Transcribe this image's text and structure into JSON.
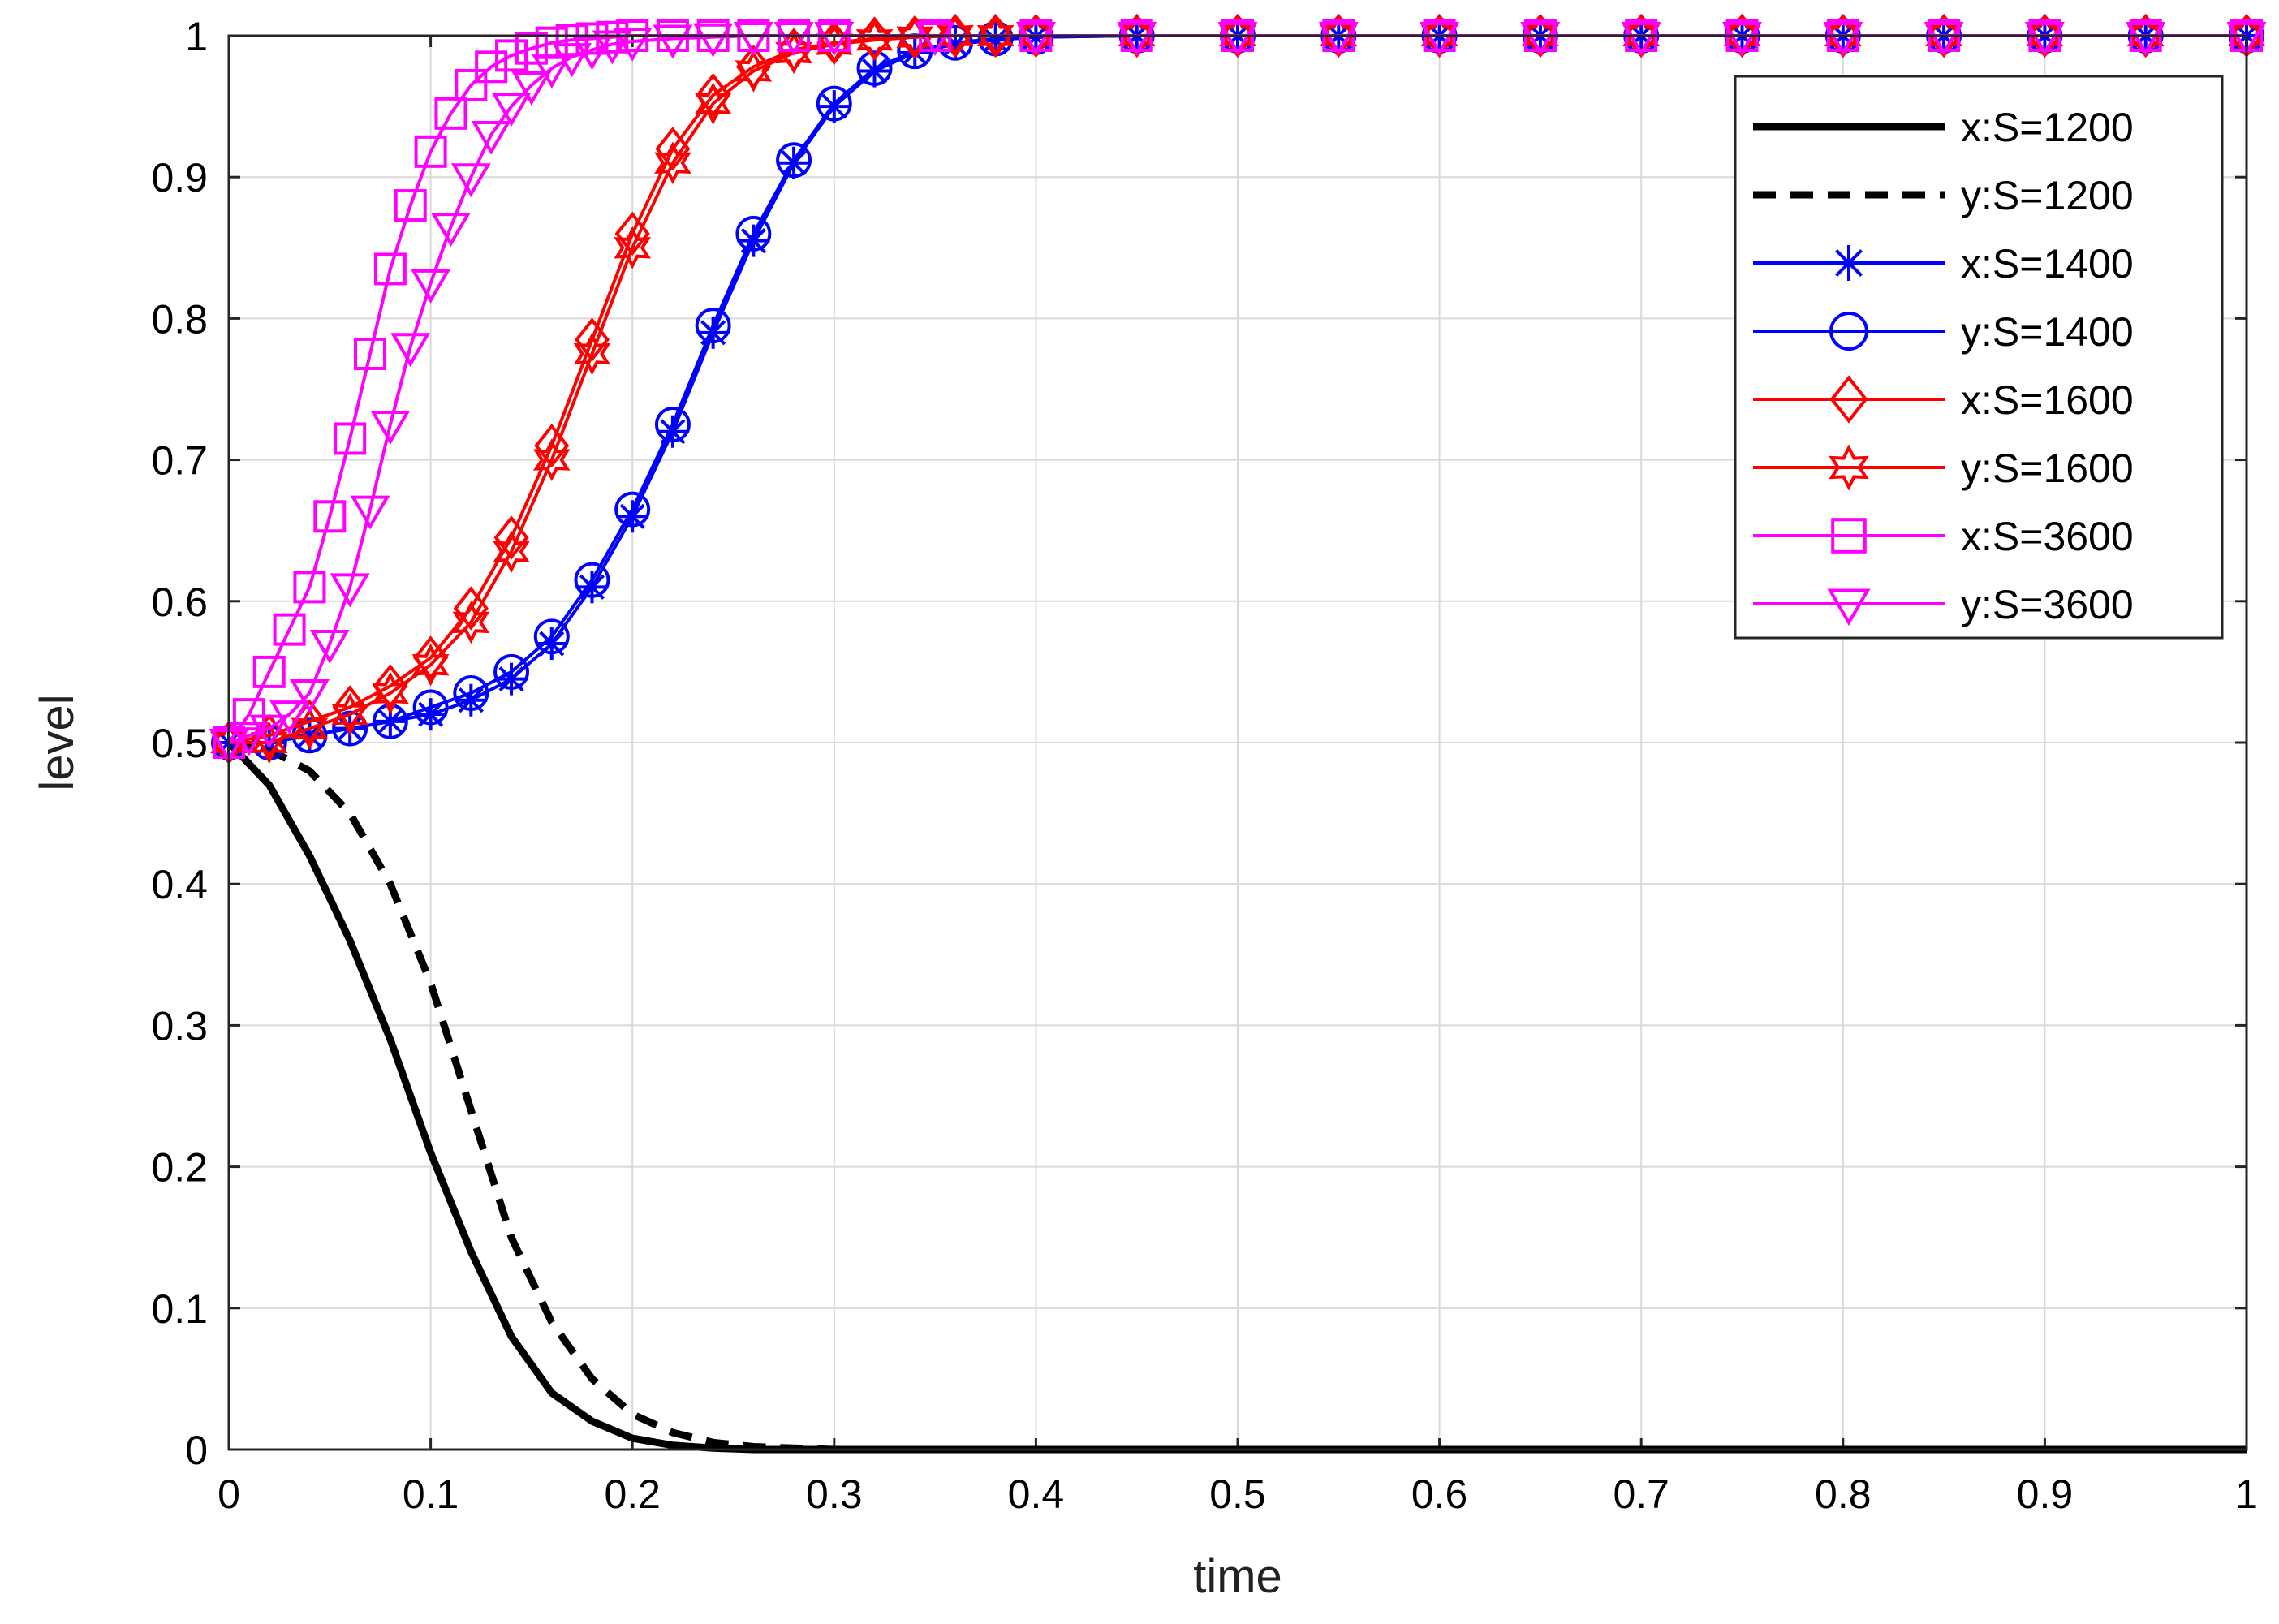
{
  "chart_data": {
    "type": "line",
    "title": "",
    "xlabel": "time",
    "ylabel": "level",
    "xlim": [
      0,
      1
    ],
    "ylim": [
      0,
      1
    ],
    "xticks": [
      "0",
      "0.1",
      "0.2",
      "0.3",
      "0.4",
      "0.5",
      "0.6",
      "0.7",
      "0.8",
      "0.9",
      "1"
    ],
    "yticks": [
      "0",
      "0.1",
      "0.2",
      "0.3",
      "0.4",
      "0.5",
      "0.6",
      "0.7",
      "0.8",
      "0.9",
      "1"
    ],
    "grid": true,
    "legend_position": "top-right",
    "series": [
      {
        "name": "x:S=1200",
        "color": "#000000",
        "dash": "solid",
        "marker": "none",
        "x": [
          0,
          0.02,
          0.04,
          0.06,
          0.08,
          0.1,
          0.12,
          0.14,
          0.16,
          0.18,
          0.2,
          0.22,
          0.24,
          0.26,
          0.28,
          0.3,
          0.35,
          0.4,
          0.5,
          0.6,
          0.7,
          0.8,
          0.9,
          1.0
        ],
        "y": [
          0.5,
          0.47,
          0.42,
          0.36,
          0.29,
          0.21,
          0.14,
          0.08,
          0.04,
          0.02,
          0.008,
          0.003,
          0.001,
          0,
          0,
          0,
          0,
          0,
          0,
          0,
          0,
          0,
          0,
          0
        ]
      },
      {
        "name": "y:S=1200",
        "color": "#000000",
        "dash": "dashed",
        "marker": "none",
        "x": [
          0,
          0.02,
          0.04,
          0.06,
          0.08,
          0.1,
          0.12,
          0.14,
          0.16,
          0.18,
          0.2,
          0.22,
          0.24,
          0.26,
          0.28,
          0.3,
          0.35,
          0.4,
          0.5,
          0.6,
          0.7,
          0.8,
          0.9,
          1.0
        ],
        "y": [
          0.5,
          0.495,
          0.48,
          0.45,
          0.4,
          0.33,
          0.24,
          0.15,
          0.09,
          0.05,
          0.025,
          0.012,
          0.005,
          0.002,
          0.001,
          0,
          0,
          0,
          0,
          0,
          0,
          0,
          0,
          0
        ]
      },
      {
        "name": "x:S=1400",
        "color": "#0000ff",
        "dash": "solid",
        "marker": "star",
        "x": [
          0,
          0.02,
          0.04,
          0.06,
          0.08,
          0.1,
          0.12,
          0.14,
          0.16,
          0.18,
          0.2,
          0.22,
          0.24,
          0.26,
          0.28,
          0.3,
          0.32,
          0.34,
          0.36,
          0.38,
          0.4,
          0.45,
          0.5,
          0.55,
          0.6,
          0.65,
          0.7,
          0.75,
          0.8,
          0.85,
          0.9,
          0.95,
          1.0
        ],
        "y": [
          0.5,
          0.5,
          0.505,
          0.51,
          0.515,
          0.52,
          0.53,
          0.545,
          0.57,
          0.61,
          0.66,
          0.72,
          0.79,
          0.855,
          0.91,
          0.95,
          0.975,
          0.988,
          0.994,
          0.997,
          0.999,
          1,
          1,
          1,
          1,
          1,
          1,
          1,
          1,
          1,
          1,
          1,
          1
        ]
      },
      {
        "name": "y:S=1400",
        "color": "#0000ff",
        "dash": "solid",
        "marker": "circle",
        "x": [
          0,
          0.02,
          0.04,
          0.06,
          0.08,
          0.1,
          0.12,
          0.14,
          0.16,
          0.18,
          0.2,
          0.22,
          0.24,
          0.26,
          0.28,
          0.3,
          0.32,
          0.34,
          0.36,
          0.38,
          0.4,
          0.45,
          0.5,
          0.55,
          0.6,
          0.65,
          0.7,
          0.75,
          0.8,
          0.85,
          0.9,
          0.95,
          1.0
        ],
        "y": [
          0.5,
          0.5,
          0.505,
          0.51,
          0.515,
          0.525,
          0.535,
          0.55,
          0.575,
          0.615,
          0.665,
          0.725,
          0.795,
          0.86,
          0.912,
          0.952,
          0.977,
          0.989,
          0.995,
          0.998,
          0.999,
          1,
          1,
          1,
          1,
          1,
          1,
          1,
          1,
          1,
          1,
          1,
          1
        ]
      },
      {
        "name": "x:S=1600",
        "color": "#ff0000",
        "dash": "solid",
        "marker": "diamond",
        "x": [
          0,
          0.02,
          0.04,
          0.06,
          0.08,
          0.1,
          0.12,
          0.14,
          0.16,
          0.18,
          0.2,
          0.22,
          0.24,
          0.26,
          0.28,
          0.3,
          0.32,
          0.34,
          0.36,
          0.38,
          0.4,
          0.45,
          0.5,
          0.55,
          0.6,
          0.65,
          0.7,
          0.75,
          0.8,
          0.85,
          0.9,
          0.95,
          1.0
        ],
        "y": [
          0.5,
          0.505,
          0.515,
          0.525,
          0.54,
          0.56,
          0.595,
          0.645,
          0.71,
          0.785,
          0.86,
          0.92,
          0.958,
          0.978,
          0.99,
          0.995,
          0.998,
          0.999,
          1,
          1,
          1,
          1,
          1,
          1,
          1,
          1,
          1,
          1,
          1,
          1,
          1,
          1,
          1
        ]
      },
      {
        "name": "y:S=1600",
        "color": "#ff0000",
        "dash": "solid",
        "marker": "hexagram",
        "x": [
          0,
          0.02,
          0.04,
          0.06,
          0.08,
          0.1,
          0.12,
          0.14,
          0.16,
          0.18,
          0.2,
          0.22,
          0.24,
          0.26,
          0.28,
          0.3,
          0.32,
          0.34,
          0.36,
          0.38,
          0.4,
          0.45,
          0.5,
          0.55,
          0.6,
          0.65,
          0.7,
          0.75,
          0.8,
          0.85,
          0.9,
          0.95,
          1.0
        ],
        "y": [
          0.5,
          0.5,
          0.51,
          0.52,
          0.535,
          0.555,
          0.585,
          0.635,
          0.7,
          0.775,
          0.85,
          0.91,
          0.952,
          0.975,
          0.988,
          0.994,
          0.997,
          0.999,
          1,
          1,
          1,
          1,
          1,
          1,
          1,
          1,
          1,
          1,
          1,
          1,
          1,
          1,
          1
        ]
      },
      {
        "name": "x:S=3600",
        "color": "#ff00ff",
        "dash": "solid",
        "marker": "square",
        "x": [
          0,
          0.01,
          0.02,
          0.03,
          0.04,
          0.05,
          0.06,
          0.07,
          0.08,
          0.09,
          0.1,
          0.11,
          0.12,
          0.13,
          0.14,
          0.15,
          0.16,
          0.17,
          0.18,
          0.19,
          0.2,
          0.22,
          0.24,
          0.26,
          0.28,
          0.3,
          0.35,
          0.4,
          0.45,
          0.5,
          0.55,
          0.6,
          0.65,
          0.7,
          0.75,
          0.8,
          0.85,
          0.9,
          0.95,
          1.0
        ],
        "y": [
          0.5,
          0.52,
          0.55,
          0.58,
          0.61,
          0.66,
          0.715,
          0.775,
          0.835,
          0.88,
          0.918,
          0.945,
          0.965,
          0.978,
          0.986,
          0.991,
          0.995,
          0.997,
          0.998,
          0.999,
          1,
          1,
          1,
          1,
          1,
          1,
          1,
          1,
          1,
          1,
          1,
          1,
          1,
          1,
          1,
          1,
          1,
          1,
          1,
          1
        ]
      },
      {
        "name": "y:S=3600",
        "color": "#ff00ff",
        "dash": "solid",
        "marker": "triangle-down",
        "x": [
          0,
          0.01,
          0.02,
          0.03,
          0.04,
          0.05,
          0.06,
          0.07,
          0.08,
          0.09,
          0.1,
          0.11,
          0.12,
          0.13,
          0.14,
          0.15,
          0.16,
          0.17,
          0.18,
          0.19,
          0.2,
          0.22,
          0.24,
          0.26,
          0.28,
          0.3,
          0.35,
          0.4,
          0.45,
          0.5,
          0.55,
          0.6,
          0.65,
          0.7,
          0.75,
          0.8,
          0.85,
          0.9,
          0.95,
          1.0
        ],
        "y": [
          0.5,
          0.505,
          0.51,
          0.52,
          0.535,
          0.57,
          0.61,
          0.665,
          0.725,
          0.78,
          0.825,
          0.865,
          0.9,
          0.93,
          0.95,
          0.965,
          0.977,
          0.985,
          0.99,
          0.994,
          0.996,
          0.998,
          0.999,
          1,
          1,
          1,
          1,
          1,
          1,
          1,
          1,
          1,
          1,
          1,
          1,
          1,
          1,
          1,
          1,
          1
        ]
      }
    ]
  }
}
